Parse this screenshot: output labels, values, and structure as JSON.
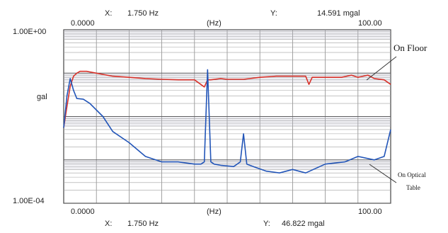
{
  "chart_data": {
    "type": "line",
    "xlabel": "(Hz)",
    "ylabel": "gal",
    "x_range": [
      0,
      100
    ],
    "y_scale": "log",
    "y_top_label": "1.00E+00",
    "y_bottom_label": "1.00E-04",
    "x_tick_labels": [
      "0.0000",
      "100.00"
    ],
    "top_readout": {
      "x_label": "X:",
      "x_value": "1.750 Hz",
      "y_label": "Y:",
      "y_value": "14.591 mgal"
    },
    "bottom_readout": {
      "x_label": "X:",
      "x_value": "1.750 Hz",
      "y_label": "Y:",
      "y_value": "46.822 mgal"
    },
    "grid": true,
    "annotations": [
      {
        "text": "On Floor",
        "points_to": "red"
      },
      {
        "text_line1": "On Optical",
        "text_line2": "Table",
        "points_to": "blue"
      }
    ],
    "series": [
      {
        "color": "#d8322a",
        "x": [
          0,
          1,
          2,
          3,
          4,
          5,
          7,
          10,
          15,
          20,
          25,
          30,
          35,
          40,
          43,
          44,
          45,
          48,
          50,
          55,
          60,
          65,
          70,
          74,
          75,
          76,
          80,
          85,
          88,
          90,
          93,
          95,
          98,
          100
        ],
        "y": [
          0.0055,
          0.017,
          0.05,
          0.085,
          0.1,
          0.11,
          0.11,
          0.1,
          0.085,
          0.08,
          0.075,
          0.072,
          0.07,
          0.07,
          0.048,
          0.07,
          0.07,
          0.075,
          0.072,
          0.072,
          0.08,
          0.085,
          0.085,
          0.085,
          0.055,
          0.08,
          0.08,
          0.08,
          0.09,
          0.08,
          0.09,
          0.075,
          0.07,
          0.055
        ]
      },
      {
        "color": "#2255b8",
        "x": [
          0,
          1,
          2,
          3,
          4,
          6,
          8,
          12,
          15,
          20,
          25,
          30,
          35,
          40,
          42,
          43,
          44,
          45,
          46,
          48,
          52,
          54,
          55,
          56,
          58,
          62,
          66,
          70,
          74,
          80,
          86,
          90,
          95,
          98,
          100
        ],
        "y": [
          0.0055,
          0.03,
          0.075,
          0.04,
          0.026,
          0.025,
          0.02,
          0.01,
          0.0045,
          0.0025,
          0.0012,
          0.0009,
          0.0009,
          0.0008,
          0.0008,
          0.0009,
          0.12,
          0.0009,
          0.0008,
          0.00075,
          0.0007,
          0.0009,
          0.004,
          0.0008,
          0.0007,
          0.00055,
          0.0005,
          0.0006,
          0.0005,
          0.0008,
          0.0009,
          0.0012,
          0.001,
          0.0012,
          0.005
        ]
      }
    ]
  }
}
